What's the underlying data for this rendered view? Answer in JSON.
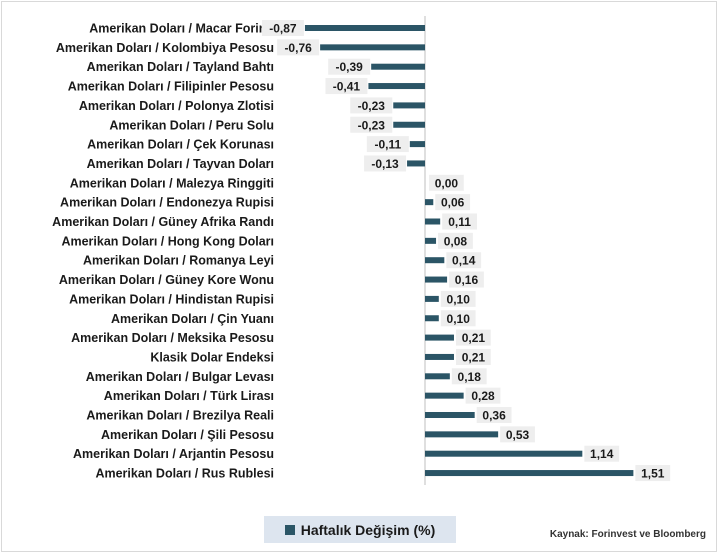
{
  "colors": {
    "bar": "#2b5566",
    "axis": "#bfbfbf",
    "label_bg": "#eeeeee"
  },
  "legend": {
    "label": "Haftalık Değişim (%)"
  },
  "source": "Kaynak: Forinvest ve Bloomberg",
  "chart_data": {
    "type": "bar",
    "orientation": "horizontal",
    "categories": [
      "Amerikan Doları / Macar Forinti",
      "Amerikan Doları / Kolombiya Pesosu",
      "Amerikan Doları / Tayland Bahtı",
      "Amerikan Doları / Filipinler Pesosu",
      "Amerikan Doları / Polonya Zlotisi",
      "Amerikan Doları / Peru Solu",
      "Amerikan Doları / Çek Korunası",
      "Amerikan Doları /  Tayvan Doları",
      "Amerikan Doları / Malezya Ringgiti",
      "Amerikan Doları / Endonezya Rupisi",
      "Amerikan Doları / Güney Afrika Randı",
      "Amerikan Doları / Hong Kong Doları",
      "Amerikan Doları / Romanya Leyi",
      "Amerikan Doları / Güney Kore Wonu",
      "Amerikan Doları / Hindistan Rupisi",
      "Amerikan Doları / Çin Yuanı",
      "Amerikan Doları / Meksika Pesosu",
      "Klasik Dolar Endeksi",
      "Amerikan Doları / Bulgar Levası",
      "Amerikan Doları / Türk Lirası",
      "Amerikan Doları / Brezilya Reali",
      "Amerikan Doları / Şili Pesosu",
      "Amerikan Doları / Arjantin Pesosu",
      "Amerikan Doları / Rus Rublesi"
    ],
    "series": [
      {
        "name": "Haftalık Değişim (%)",
        "values": [
          -0.87,
          -0.76,
          -0.39,
          -0.41,
          -0.23,
          -0.23,
          -0.11,
          -0.13,
          0.0,
          0.06,
          0.11,
          0.08,
          0.14,
          0.16,
          0.1,
          0.1,
          0.21,
          0.21,
          0.18,
          0.28,
          0.36,
          0.53,
          1.14,
          1.51
        ],
        "labels": [
          "-0,87",
          "-0,76",
          "-0,39",
          "-0,41",
          "-0,23",
          "-0,23",
          "-0,11",
          "-0,13",
          "0,00",
          "0,06",
          "0,11",
          "0,08",
          "0,14",
          "0,16",
          "0,10",
          "0,10",
          "0,21",
          "0,21",
          "0,18",
          "0,28",
          "0,36",
          "0,53",
          "1,14",
          "1,51"
        ]
      }
    ],
    "title": "",
    "xlabel": "",
    "ylabel": "",
    "xlim": [
      -0.87,
      1.51
    ],
    "grid": false,
    "legend_position": "bottom"
  }
}
